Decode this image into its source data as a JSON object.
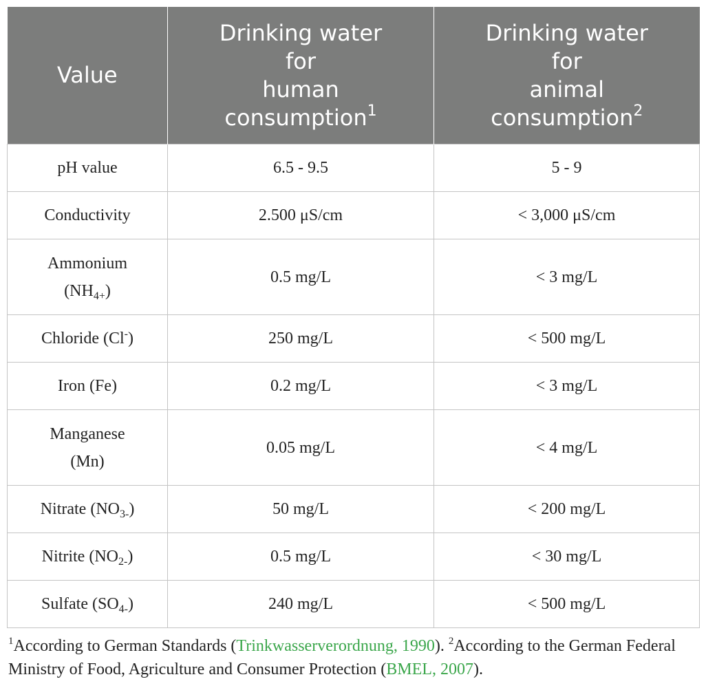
{
  "header": {
    "col1": "Value",
    "col2": [
      "Drinking water",
      "for",
      "human",
      "consumption"
    ],
    "col2_sup": "1",
    "col3": [
      "Drinking water",
      "for",
      "animal",
      "consumption"
    ],
    "col3_sup": "2"
  },
  "rows": [
    {
      "label": "pH value",
      "human": "6.5 - 9.5",
      "animal": "5 - 9"
    },
    {
      "label": "Conductivity",
      "human": "2.500 μS/cm",
      "animal": "< 3,000 μS/cm"
    },
    {
      "label_line1": "Ammonium",
      "label_base": "(NH",
      "label_sub": "4+",
      "label_end": ")",
      "human": "0.5 mg/L",
      "animal": "< 3 mg/L"
    },
    {
      "label_base": "Chloride (Cl",
      "label_sup": "-",
      "label_end": ")",
      "human": "250 mg/L",
      "animal": "< 500 mg/L"
    },
    {
      "label": "Iron (Fe)",
      "human": "0.2 mg/L",
      "animal": "< 3 mg/L"
    },
    {
      "label_line1": "Manganese",
      "label_line2": "(Mn)",
      "human": "0.05 mg/L",
      "animal": "< 4 mg/L"
    },
    {
      "label_base": "Nitrate (NO",
      "label_sub": "3-",
      "label_end": ")",
      "human": "50 mg/L",
      "animal": "< 200 mg/L"
    },
    {
      "label_base": "Nitrite (NO",
      "label_sub": "2-",
      "label_end": ")",
      "human": "0.5 mg/L",
      "animal": "< 30 mg/L"
    },
    {
      "label_base": "Sulfate (SO",
      "label_sub": "4-",
      "label_end": ")",
      "human": "240 mg/L",
      "animal": "< 500 mg/L"
    }
  ],
  "footnote": {
    "sup1": "1",
    "part1": "According to German Standards (",
    "ref1": "Trinkwasserverordnung, 1990",
    "part2": "). ",
    "sup2": "2",
    "part3": "According to the German Federal Ministry of Food, Agriculture and Consumer Protection (",
    "ref2": "BMEL, 2007",
    "part4": ")."
  }
}
